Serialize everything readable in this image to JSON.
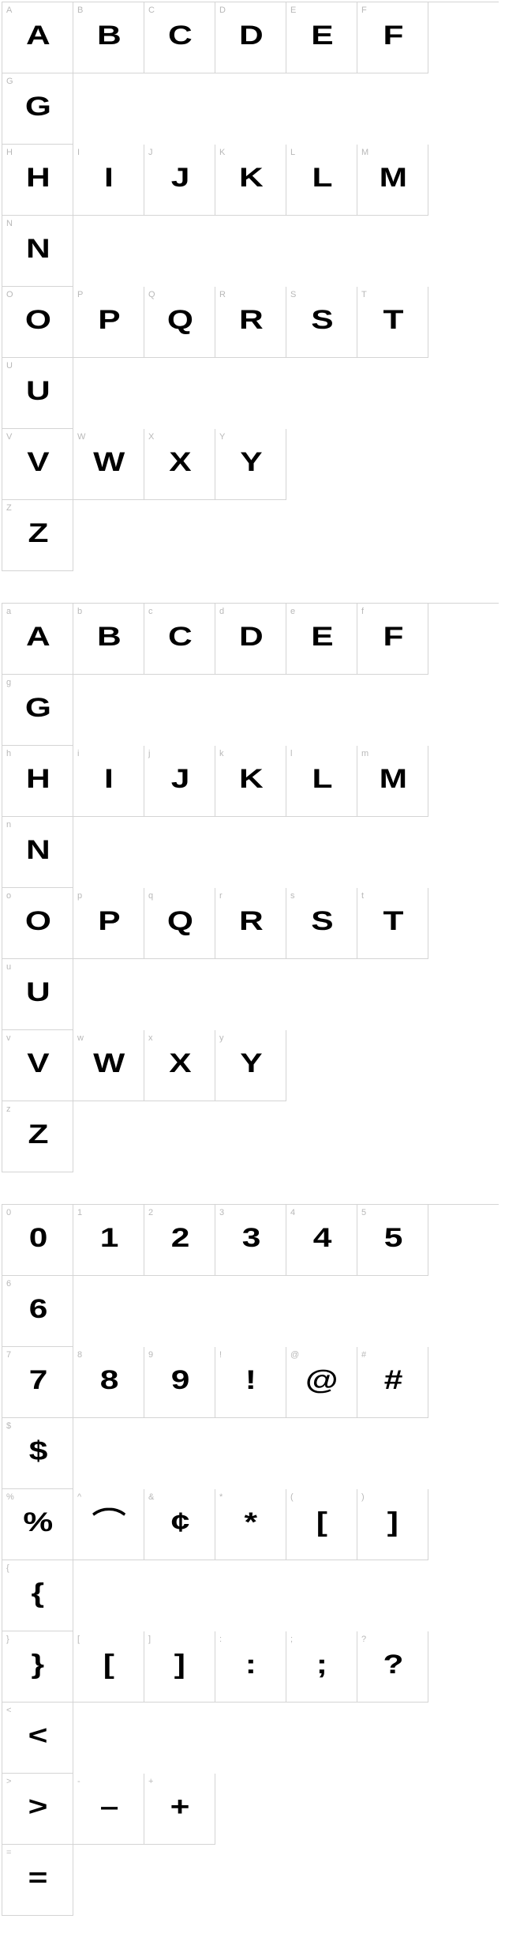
{
  "colors": {
    "border": "#d4d4d4",
    "label": "#b8b8b8",
    "glyph": "#000000",
    "background": "#ffffff"
  },
  "cell_size": 90,
  "label_fontsize": 11,
  "glyph_fontsize": 34,
  "sections": [
    {
      "name": "uppercase",
      "rows": [
        [
          {
            "label": "A",
            "glyph": "A"
          },
          {
            "label": "B",
            "glyph": "B"
          },
          {
            "label": "C",
            "glyph": "C"
          },
          {
            "label": "D",
            "glyph": "D"
          },
          {
            "label": "E",
            "glyph": "E"
          },
          {
            "label": "F",
            "glyph": "F"
          },
          {
            "label": "G",
            "glyph": "G"
          }
        ],
        [
          {
            "label": "H",
            "glyph": "H"
          },
          {
            "label": "I",
            "glyph": "I"
          },
          {
            "label": "J",
            "glyph": "J"
          },
          {
            "label": "K",
            "glyph": "K"
          },
          {
            "label": "L",
            "glyph": "L"
          },
          {
            "label": "M",
            "glyph": "M"
          },
          {
            "label": "N",
            "glyph": "N"
          }
        ],
        [
          {
            "label": "O",
            "glyph": "O"
          },
          {
            "label": "P",
            "glyph": "P"
          },
          {
            "label": "Q",
            "glyph": "Q"
          },
          {
            "label": "R",
            "glyph": "R"
          },
          {
            "label": "S",
            "glyph": "S"
          },
          {
            "label": "T",
            "glyph": "T"
          },
          {
            "label": "U",
            "glyph": "U"
          }
        ],
        [
          {
            "label": "V",
            "glyph": "V"
          },
          {
            "label": "W",
            "glyph": "W"
          },
          {
            "label": "X",
            "glyph": "X"
          },
          {
            "label": "Y",
            "glyph": "Y"
          },
          {
            "label": "Z",
            "glyph": "Z"
          }
        ]
      ]
    },
    {
      "name": "lowercase",
      "rows": [
        [
          {
            "label": "a",
            "glyph": "A"
          },
          {
            "label": "b",
            "glyph": "B"
          },
          {
            "label": "c",
            "glyph": "C"
          },
          {
            "label": "d",
            "glyph": "D"
          },
          {
            "label": "e",
            "glyph": "E"
          },
          {
            "label": "f",
            "glyph": "F"
          },
          {
            "label": "g",
            "glyph": "G"
          }
        ],
        [
          {
            "label": "h",
            "glyph": "H"
          },
          {
            "label": "i",
            "glyph": "I"
          },
          {
            "label": "j",
            "glyph": "J"
          },
          {
            "label": "k",
            "glyph": "K"
          },
          {
            "label": "l",
            "glyph": "L"
          },
          {
            "label": "m",
            "glyph": "M"
          },
          {
            "label": "n",
            "glyph": "N"
          }
        ],
        [
          {
            "label": "o",
            "glyph": "O"
          },
          {
            "label": "p",
            "glyph": "P"
          },
          {
            "label": "q",
            "glyph": "Q"
          },
          {
            "label": "r",
            "glyph": "R"
          },
          {
            "label": "s",
            "glyph": "S"
          },
          {
            "label": "t",
            "glyph": "T"
          },
          {
            "label": "u",
            "glyph": "U"
          }
        ],
        [
          {
            "label": "v",
            "glyph": "V"
          },
          {
            "label": "w",
            "glyph": "W"
          },
          {
            "label": "x",
            "glyph": "X"
          },
          {
            "label": "y",
            "glyph": "Y"
          },
          {
            "label": "z",
            "glyph": "Z"
          }
        ]
      ]
    },
    {
      "name": "symbols",
      "rows": [
        [
          {
            "label": "0",
            "glyph": "0"
          },
          {
            "label": "1",
            "glyph": "1"
          },
          {
            "label": "2",
            "glyph": "2"
          },
          {
            "label": "3",
            "glyph": "3"
          },
          {
            "label": "4",
            "glyph": "4"
          },
          {
            "label": "5",
            "glyph": "5"
          },
          {
            "label": "6",
            "glyph": "6"
          }
        ],
        [
          {
            "label": "7",
            "glyph": "7"
          },
          {
            "label": "8",
            "glyph": "8"
          },
          {
            "label": "9",
            "glyph": "9"
          },
          {
            "label": "!",
            "glyph": "!"
          },
          {
            "label": "@",
            "glyph": "@"
          },
          {
            "label": "#",
            "glyph": "#"
          },
          {
            "label": "$",
            "glyph": "$"
          }
        ],
        [
          {
            "label": "%",
            "glyph": "%"
          },
          {
            "label": "^",
            "glyph": "⌒"
          },
          {
            "label": "&",
            "glyph": "¢"
          },
          {
            "label": "*",
            "glyph": "*"
          },
          {
            "label": "(",
            "glyph": "["
          },
          {
            "label": ")",
            "glyph": "]"
          },
          {
            "label": "{",
            "glyph": "{"
          }
        ],
        [
          {
            "label": "}",
            "glyph": "}"
          },
          {
            "label": "[",
            "glyph": "["
          },
          {
            "label": "]",
            "glyph": "]"
          },
          {
            "label": ":",
            "glyph": ":"
          },
          {
            "label": ";",
            "glyph": ";"
          },
          {
            "label": "?",
            "glyph": "?"
          },
          {
            "label": "<",
            "glyph": "<"
          }
        ],
        [
          {
            "label": ">",
            "glyph": ">"
          },
          {
            "label": "-",
            "glyph": "–"
          },
          {
            "label": "+",
            "glyph": "+"
          },
          {
            "label": "=",
            "glyph": "="
          }
        ]
      ]
    }
  ]
}
